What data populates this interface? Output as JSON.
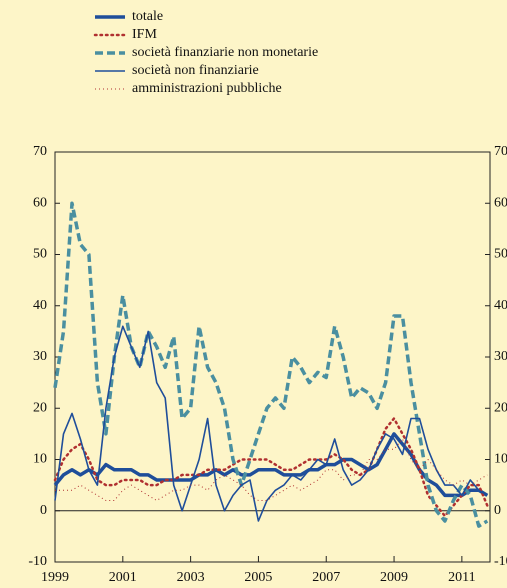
{
  "chart_data": {
    "type": "line",
    "x": [
      1999,
      1999.25,
      1999.5,
      1999.75,
      2000,
      2000.25,
      2000.5,
      2000.75,
      2001,
      2001.25,
      2001.5,
      2001.75,
      2002,
      2002.25,
      2002.5,
      2002.75,
      2003,
      2003.25,
      2003.5,
      2003.75,
      2004,
      2004.25,
      2004.5,
      2004.75,
      2005,
      2005.25,
      2005.5,
      2005.75,
      2006,
      2006.25,
      2006.5,
      2006.75,
      2007,
      2007.25,
      2007.5,
      2007.75,
      2008,
      2008.25,
      2008.5,
      2008.75,
      2009,
      2009.25,
      2009.5,
      2009.75,
      2010,
      2010.25,
      2010.5,
      2010.75,
      2011,
      2011.25,
      2011.5,
      2011.75
    ],
    "series": [
      {
        "name": "totale",
        "color": "#1f4e9a",
        "values": [
          5,
          7,
          8,
          7,
          8,
          7,
          9,
          8,
          8,
          8,
          7,
          7,
          6,
          6,
          6,
          6,
          6,
          7,
          7,
          8,
          7,
          8,
          7,
          7,
          8,
          8,
          8,
          7,
          7,
          7,
          8,
          8,
          9,
          9,
          10,
          10,
          9,
          8,
          9,
          12,
          15,
          13,
          11,
          8,
          6,
          5,
          3,
          3,
          3,
          4,
          4,
          3
        ]
      },
      {
        "name": "IFM",
        "color": "#b03030",
        "values": [
          6,
          10,
          12,
          13,
          10,
          6,
          5,
          5,
          6,
          6,
          6,
          5,
          5,
          6,
          6,
          7,
          7,
          7,
          8,
          8,
          8,
          9,
          10,
          10,
          10,
          10,
          9,
          8,
          8,
          9,
          10,
          10,
          10,
          11,
          10,
          8,
          7,
          8,
          12,
          16,
          18,
          15,
          12,
          8,
          3,
          1,
          -1,
          1,
          3,
          5,
          5,
          1
        ]
      },
      {
        "name": "società finanziarie non monetarie",
        "color": "#4a8fa0",
        "values": [
          24,
          35,
          60,
          52,
          50,
          25,
          15,
          30,
          42,
          32,
          28,
          35,
          32,
          28,
          34,
          18,
          20,
          36,
          28,
          25,
          20,
          10,
          5,
          10,
          15,
          20,
          22,
          20,
          30,
          28,
          25,
          27,
          26,
          36,
          30,
          22,
          24,
          23,
          20,
          25,
          38,
          38,
          25,
          15,
          5,
          0,
          -2,
          2,
          5,
          3,
          -3,
          -2
        ]
      },
      {
        "name": "società non finanziarie",
        "color": "#1f4e9a",
        "values": [
          2,
          15,
          19,
          14,
          8,
          5,
          20,
          30,
          36,
          32,
          28,
          35,
          25,
          22,
          5,
          0,
          5,
          10,
          18,
          5,
          0,
          3,
          5,
          6,
          -2,
          2,
          4,
          5,
          7,
          6,
          8,
          10,
          9,
          14,
          8,
          5,
          6,
          8,
          12,
          15,
          14,
          11,
          18,
          18,
          12,
          8,
          5,
          5,
          3,
          6,
          4,
          3
        ]
      },
      {
        "name": "amministrazioni pubbliche",
        "color": "#b03030",
        "values": [
          4,
          4,
          4,
          5,
          4,
          3,
          2,
          2,
          4,
          5,
          4,
          3,
          2,
          3,
          4,
          4,
          5,
          5,
          4,
          6,
          7,
          6,
          5,
          3,
          2,
          2,
          3,
          4,
          5,
          4,
          5,
          6,
          8,
          8,
          6,
          7,
          7,
          10,
          10,
          12,
          12,
          14,
          10,
          8,
          10,
          8,
          6,
          5,
          6,
          5,
          6,
          7
        ]
      }
    ],
    "xlim": [
      1999,
      2011.83
    ],
    "xticks": [
      1999,
      2001,
      2003,
      2005,
      2007,
      2009,
      2011
    ],
    "ylim": [
      -10,
      70
    ],
    "yticks": [
      -10,
      0,
      10,
      20,
      30,
      40,
      50,
      60,
      70
    ]
  }
}
